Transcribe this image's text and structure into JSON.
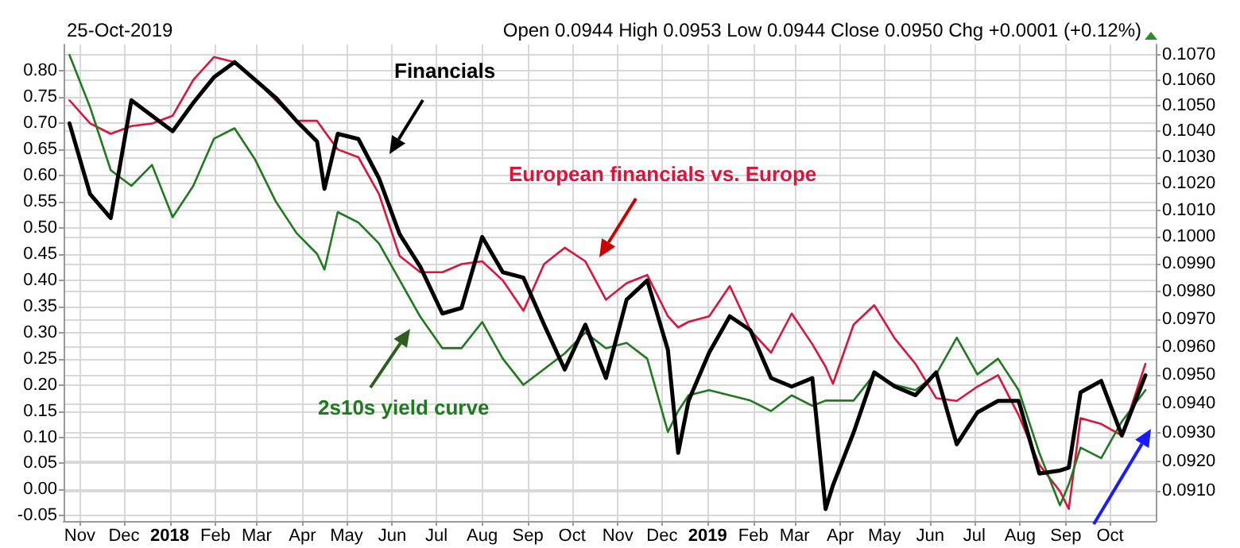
{
  "chart_data": {
    "type": "line",
    "subtitle": "25-Oct-2019",
    "annotations": [
      "Open 0.0944 High 0.0953 Low 0.0944 Close 0.0950 Chg +0.0001 (+0.12%)"
    ],
    "x": [
      "2017-10-25",
      "2017-11-08",
      "2017-11-22",
      "2017-12-06",
      "2017-12-20",
      "2018-01-03",
      "2018-01-17",
      "2018-01-31",
      "2018-02-14",
      "2018-02-28",
      "2018-03-14",
      "2018-03-28",
      "2018-04-11",
      "2018-04-16",
      "2018-04-25",
      "2018-05-09",
      "2018-05-23",
      "2018-06-06",
      "2018-06-20",
      "2018-07-05",
      "2018-07-18",
      "2018-08-01",
      "2018-08-15",
      "2018-08-29",
      "2018-09-12",
      "2018-09-26",
      "2018-10-10",
      "2018-10-24",
      "2018-11-07",
      "2018-11-21",
      "2018-12-05",
      "2018-12-12",
      "2018-12-19",
      "2019-01-02",
      "2019-01-16",
      "2019-01-30",
      "2019-02-13",
      "2019-02-27",
      "2019-03-13",
      "2019-03-22",
      "2019-03-27",
      "2019-04-10",
      "2019-04-24",
      "2019-05-08",
      "2019-05-22",
      "2019-06-05",
      "2019-06-19",
      "2019-07-03",
      "2019-07-17",
      "2019-07-31",
      "2019-08-14",
      "2019-08-28",
      "2019-09-03",
      "2019-09-11",
      "2019-09-25",
      "2019-10-09",
      "2019-10-25"
    ],
    "series": [
      {
        "name": "European financials vs. Europe",
        "color": "#dc143c",
        "axis": "y2",
        "values": [
          0.1052,
          0.1043,
          0.1039,
          0.1042,
          0.1043,
          0.1046,
          0.106,
          0.1069,
          0.1067,
          0.106,
          0.1052,
          0.1044,
          0.1044,
          0.104,
          0.1033,
          0.103,
          0.1016,
          0.0993,
          0.0987,
          0.0987,
          0.099,
          0.0991,
          0.0984,
          0.0973,
          0.099,
          0.0996,
          0.0991,
          0.0977,
          0.0983,
          0.0986,
          0.0971,
          0.0967,
          0.0969,
          0.0971,
          0.0982,
          0.0966,
          0.0958,
          0.0972,
          0.0961,
          0.0953,
          0.0947,
          0.0968,
          0.0975,
          0.0963,
          0.0954,
          0.0942,
          0.0941,
          0.0946,
          0.095,
          0.0936,
          0.0919,
          0.091,
          0.0904,
          0.0935,
          0.0933,
          0.0929,
          0.0954
        ]
      },
      {
        "name": "2s10s yield curve",
        "color": "#1f7a1f",
        "values": [
          0.83,
          0.73,
          0.61,
          0.58,
          0.62,
          0.52,
          0.58,
          0.67,
          0.69,
          0.63,
          0.55,
          0.49,
          0.45,
          0.42,
          0.53,
          0.51,
          0.47,
          0.4,
          0.33,
          0.27,
          0.27,
          0.32,
          0.25,
          0.2,
          0.23,
          0.26,
          0.3,
          0.27,
          0.28,
          0.25,
          0.11,
          0.15,
          0.18,
          0.19,
          0.18,
          0.17,
          0.15,
          0.18,
          0.16,
          0.17,
          0.17,
          0.17,
          0.22,
          0.2,
          0.19,
          0.22,
          0.29,
          0.22,
          0.25,
          0.19,
          0.07,
          -0.03,
          0.01,
          0.08,
          0.06,
          0.13,
          0.19
        ]
      },
      {
        "name": "Financials",
        "color": "#000000",
        "axis": "y2",
        "values": [
          0.1043,
          0.1016,
          0.1007,
          0.1052,
          0.1046,
          0.104,
          0.1051,
          0.1061,
          0.1067,
          0.106,
          0.1053,
          0.1044,
          0.1036,
          0.1018,
          0.1039,
          0.1037,
          0.1022,
          0.1001,
          0.0989,
          0.0972,
          0.0974,
          0.1,
          0.0987,
          0.0985,
          0.0968,
          0.0952,
          0.0968,
          0.0949,
          0.0977,
          0.0984,
          0.0959,
          0.0923,
          0.0941,
          0.0958,
          0.0971,
          0.0966,
          0.0949,
          0.0946,
          0.0949,
          0.0904,
          0.0912,
          0.093,
          0.0951,
          0.0946,
          0.0943,
          0.0951,
          0.0926,
          0.0937,
          0.0941,
          0.0941,
          0.0916,
          0.0917,
          0.0918,
          0.0944,
          0.0948,
          0.0929,
          0.095
        ]
      }
    ],
    "xlim": [
      "2017-10-21",
      "2019-11-01"
    ],
    "xticks": [
      {
        "value": "2017-11-01",
        "label": "Nov"
      },
      {
        "value": "2017-12-01",
        "label": "Dec"
      },
      {
        "value": "2018-01-01",
        "label": "2018"
      },
      {
        "value": "2018-02-01",
        "label": "Feb"
      },
      {
        "value": "2018-03-01",
        "label": "Mar"
      },
      {
        "value": "2018-04-01",
        "label": "Apr"
      },
      {
        "value": "2018-05-01",
        "label": "May"
      },
      {
        "value": "2018-06-01",
        "label": "Jun"
      },
      {
        "value": "2018-07-01",
        "label": "Jul"
      },
      {
        "value": "2018-08-01",
        "label": "Aug"
      },
      {
        "value": "2018-09-01",
        "label": "Sep"
      },
      {
        "value": "2018-10-01",
        "label": "Oct"
      },
      {
        "value": "2018-11-01",
        "label": "Nov"
      },
      {
        "value": "2018-12-01",
        "label": "Dec"
      },
      {
        "value": "2019-01-01",
        "label": "2019"
      },
      {
        "value": "2019-02-01",
        "label": "Feb"
      },
      {
        "value": "2019-03-01",
        "label": "Mar"
      },
      {
        "value": "2019-04-01",
        "label": "Apr"
      },
      {
        "value": "2019-05-01",
        "label": "May"
      },
      {
        "value": "2019-06-01",
        "label": "Jun"
      },
      {
        "value": "2019-07-01",
        "label": "Jul"
      },
      {
        "value": "2019-08-01",
        "label": "Aug"
      },
      {
        "value": "2019-09-01",
        "label": "Sep"
      },
      {
        "value": "2019-10-01",
        "label": "Oct"
      }
    ],
    "ylim": [
      -0.06,
      0.85
    ],
    "yticks": [
      {
        "value": -0.05,
        "label": "-0.05"
      },
      {
        "value": 0,
        "label": "0.00"
      },
      {
        "value": 0.05,
        "label": "0.05"
      },
      {
        "value": 0.1,
        "label": "0.10"
      },
      {
        "value": 0.15,
        "label": "0.15"
      },
      {
        "value": 0.2,
        "label": "0.20"
      },
      {
        "value": 0.25,
        "label": "0.25"
      },
      {
        "value": 0.3,
        "label": "0.30"
      },
      {
        "value": 0.35,
        "label": "0.35"
      },
      {
        "value": 0.4,
        "label": "0.40"
      },
      {
        "value": 0.45,
        "label": "0.45"
      },
      {
        "value": 0.5,
        "label": "0.50"
      },
      {
        "value": 0.55,
        "label": "0.55"
      },
      {
        "value": 0.6,
        "label": "0.60"
      },
      {
        "value": 0.65,
        "label": "0.65"
      },
      {
        "value": 0.7,
        "label": "0.70"
      },
      {
        "value": 0.75,
        "label": "0.75"
      },
      {
        "value": 0.8,
        "label": "0.80"
      }
    ],
    "y2lim": [
      0.09,
      0.1074
    ],
    "y2ticks": [
      {
        "value": 0.091,
        "label": "0.0910"
      },
      {
        "value": 0.092,
        "label": "0.0920"
      },
      {
        "value": 0.093,
        "label": "0.0930"
      },
      {
        "value": 0.094,
        "label": "0.0940"
      },
      {
        "value": 0.095,
        "label": "0.0950"
      },
      {
        "value": 0.096,
        "label": "0.0960"
      },
      {
        "value": 0.097,
        "label": "0.0970"
      },
      {
        "value": 0.098,
        "label": "0.0980"
      },
      {
        "value": 0.099,
        "label": "0.0990"
      },
      {
        "value": 0.1,
        "label": "0.1000"
      },
      {
        "value": 0.101,
        "label": "0.1010"
      },
      {
        "value": 0.102,
        "label": "0.1020"
      },
      {
        "value": 0.103,
        "label": "0.1030"
      },
      {
        "value": 0.104,
        "label": "0.1040"
      },
      {
        "value": 0.105,
        "label": "0.1050"
      },
      {
        "value": 0.106,
        "label": "0.1060"
      },
      {
        "value": 0.107,
        "label": "0.1070"
      }
    ],
    "log": "y2",
    "grid": true,
    "marker": "none"
  }
}
